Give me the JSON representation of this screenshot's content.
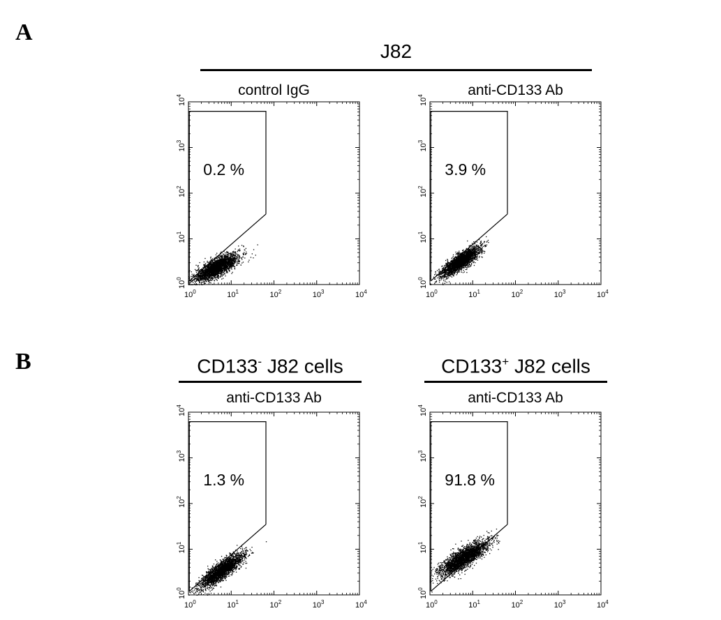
{
  "panels": [
    {
      "letter": "A",
      "group_label": "J82"
    },
    {
      "letter": "B",
      "group_labels": [
        {
          "base": "CD133",
          "sup": "-",
          "rest": " J82 cells"
        },
        {
          "base": "CD133",
          "sup": "+",
          "rest": " J82 cells"
        }
      ]
    }
  ],
  "chart_data": [
    {
      "type": "scatter",
      "panel": "A",
      "group": "J82",
      "title": "control IgG",
      "x_scale": "log",
      "y_scale": "log",
      "xlim": [
        1,
        10000
      ],
      "ylim": [
        1,
        10000
      ],
      "x_ticks": [
        {
          "base": "10",
          "exp": "0"
        },
        {
          "base": "10",
          "exp": "1"
        },
        {
          "base": "10",
          "exp": "2"
        },
        {
          "base": "10",
          "exp": "3"
        },
        {
          "base": "10",
          "exp": "4"
        }
      ],
      "y_ticks": [
        {
          "base": "10",
          "exp": "0"
        },
        {
          "base": "10",
          "exp": "1"
        },
        {
          "base": "10",
          "exp": "2"
        },
        {
          "base": "10",
          "exp": "3"
        },
        {
          "base": "10",
          "exp": "4"
        }
      ],
      "gate_percent": "0.2 %",
      "gate": [
        [
          1.05,
          1.2
        ],
        [
          1.05,
          6200
        ],
        [
          65,
          6200
        ],
        [
          65,
          35
        ]
      ],
      "population": {
        "center": [
          4.5,
          2.4
        ],
        "spread": 0.18,
        "slope": 0.45
      }
    },
    {
      "type": "scatter",
      "panel": "A",
      "group": "J82",
      "title": "anti-CD133 Ab",
      "x_scale": "log",
      "y_scale": "log",
      "xlim": [
        1,
        10000
      ],
      "ylim": [
        1,
        10000
      ],
      "x_ticks": [
        {
          "base": "10",
          "exp": "0"
        },
        {
          "base": "10",
          "exp": "1"
        },
        {
          "base": "10",
          "exp": "2"
        },
        {
          "base": "10",
          "exp": "3"
        },
        {
          "base": "10",
          "exp": "4"
        }
      ],
      "y_ticks": [
        {
          "base": "10",
          "exp": "0"
        },
        {
          "base": "10",
          "exp": "1"
        },
        {
          "base": "10",
          "exp": "2"
        },
        {
          "base": "10",
          "exp": "3"
        },
        {
          "base": "10",
          "exp": "4"
        }
      ],
      "gate_percent": "3.9 %",
      "gate": [
        [
          1.05,
          1.2
        ],
        [
          1.05,
          6200
        ],
        [
          65,
          6200
        ],
        [
          65,
          35
        ]
      ],
      "population": {
        "center": [
          5,
          3.2
        ],
        "spread": 0.16,
        "slope": 0.6
      }
    },
    {
      "type": "scatter",
      "panel": "B",
      "group": "CD133- J82 cells",
      "title": "anti-CD133 Ab",
      "x_scale": "log",
      "y_scale": "log",
      "xlim": [
        1,
        10000
      ],
      "ylim": [
        1,
        10000
      ],
      "x_ticks": [
        {
          "base": "10",
          "exp": "0"
        },
        {
          "base": "10",
          "exp": "1"
        },
        {
          "base": "10",
          "exp": "2"
        },
        {
          "base": "10",
          "exp": "3"
        },
        {
          "base": "10",
          "exp": "4"
        }
      ],
      "y_ticks": [
        {
          "base": "10",
          "exp": "0"
        },
        {
          "base": "10",
          "exp": "1"
        },
        {
          "base": "10",
          "exp": "2"
        },
        {
          "base": "10",
          "exp": "3"
        },
        {
          "base": "10",
          "exp": "4"
        }
      ],
      "gate_percent": "1.3 %",
      "gate": [
        [
          1.05,
          1.2
        ],
        [
          1.05,
          6200
        ],
        [
          65,
          6200
        ],
        [
          65,
          35
        ]
      ],
      "population": {
        "center": [
          6,
          3.5
        ],
        "spread": 0.18,
        "slope": 0.65
      }
    },
    {
      "type": "scatter",
      "panel": "B",
      "group": "CD133+ J82 cells",
      "title": "anti-CD133 Ab",
      "x_scale": "log",
      "y_scale": "log",
      "xlim": [
        1,
        10000
      ],
      "ylim": [
        1,
        10000
      ],
      "x_ticks": [
        {
          "base": "10",
          "exp": "0"
        },
        {
          "base": "10",
          "exp": "1"
        },
        {
          "base": "10",
          "exp": "2"
        },
        {
          "base": "10",
          "exp": "3"
        },
        {
          "base": "10",
          "exp": "4"
        }
      ],
      "y_ticks": [
        {
          "base": "10",
          "exp": "0"
        },
        {
          "base": "10",
          "exp": "1"
        },
        {
          "base": "10",
          "exp": "2"
        },
        {
          "base": "10",
          "exp": "3"
        },
        {
          "base": "10",
          "exp": "4"
        }
      ],
      "gate_percent": "91.8 %",
      "gate": [
        [
          1.05,
          1.2
        ],
        [
          1.05,
          6200
        ],
        [
          65,
          6200
        ],
        [
          65,
          35
        ]
      ],
      "population": {
        "center": [
          6,
          6.5
        ],
        "spread": 0.2,
        "slope": 0.55
      }
    }
  ]
}
